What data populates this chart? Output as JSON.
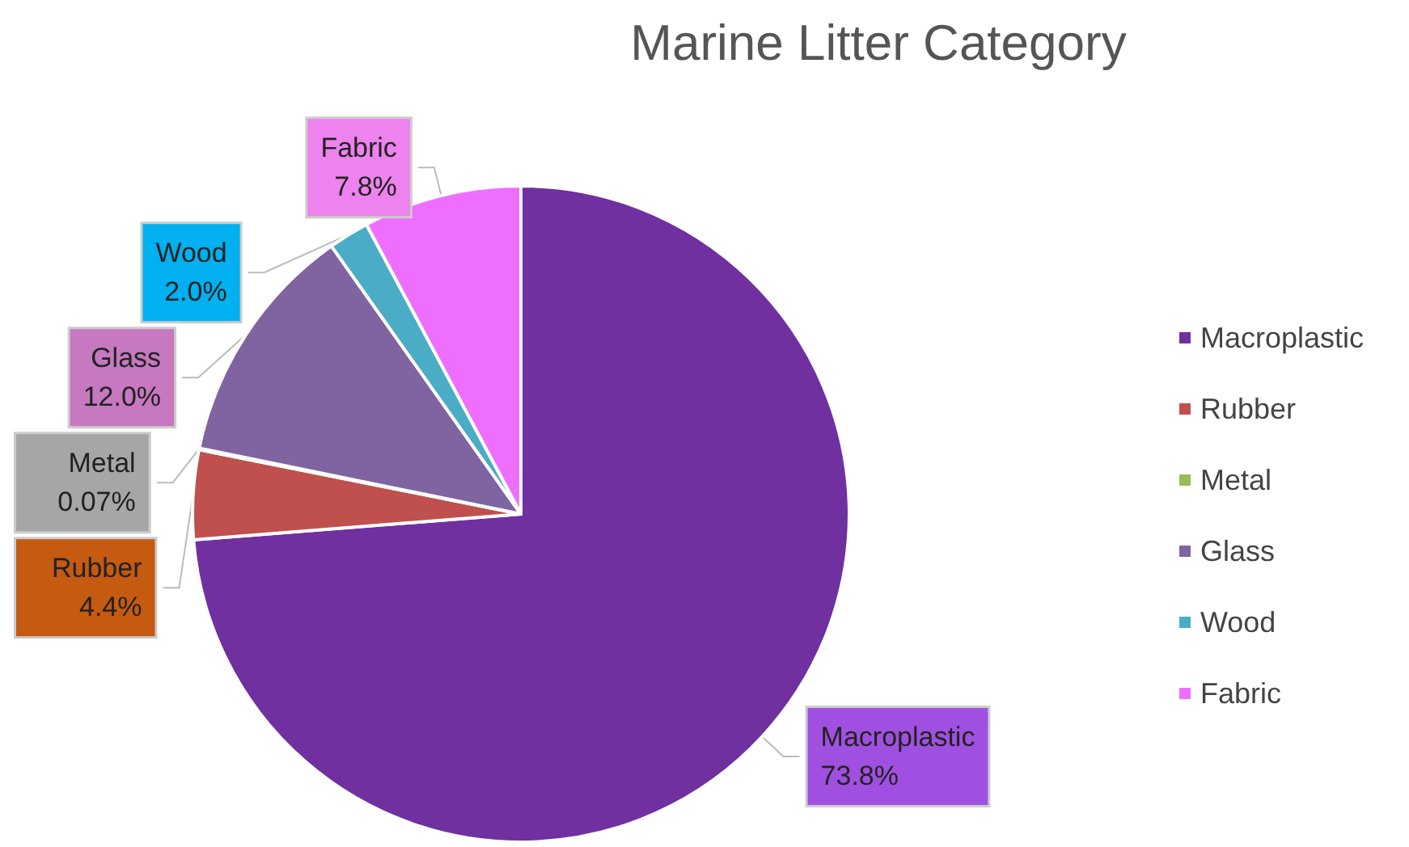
{
  "chart_data": {
    "type": "pie",
    "title": "Marine Litter Category",
    "categories": [
      "Macroplastic",
      "Rubber",
      "Metal",
      "Glass",
      "Wood",
      "Fabric"
    ],
    "values": [
      73.8,
      4.4,
      0.07,
      12.0,
      2.0,
      7.8
    ],
    "value_labels": [
      "73.8%",
      "4.4%",
      "0.07%",
      "12.0%",
      "2.0%",
      "7.8%"
    ],
    "colors": [
      "#7030a0",
      "#c0504d",
      "#9bbb59",
      "#8064a2",
      "#4bacc6",
      "#ee6fff"
    ],
    "legend": "right"
  }
}
